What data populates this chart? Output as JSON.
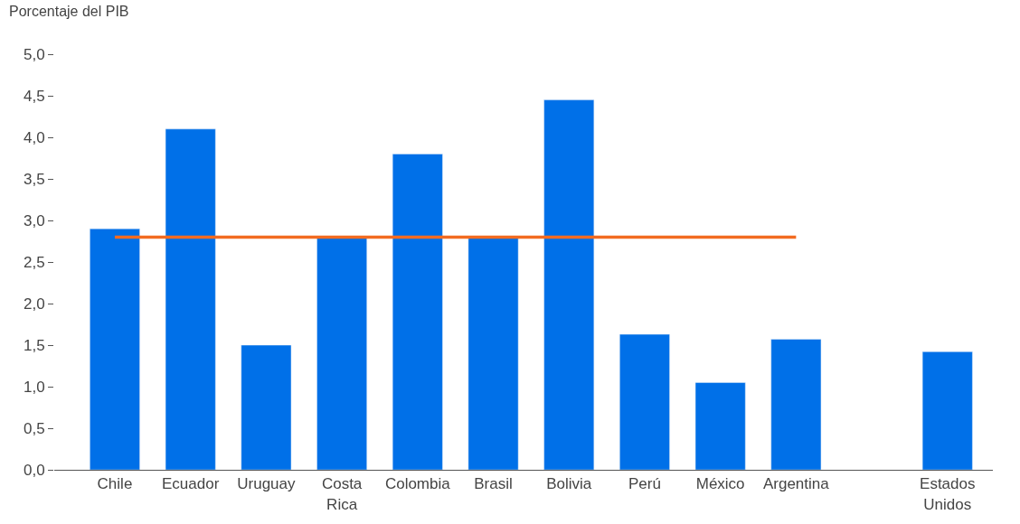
{
  "chart_data": {
    "type": "bar",
    "ylabel": "Porcentaje del PIB",
    "categories": [
      "Chile",
      "Ecuador",
      "Uruguay",
      "Costa Rica",
      "Colombia",
      "Brasil",
      "Bolivia",
      "Perú",
      "México",
      "Argentina",
      null,
      "Estados Unidos"
    ],
    "series": [
      {
        "color": "#0070e8",
        "values": [
          2.9,
          4.1,
          1.5,
          2.8,
          3.8,
          2.8,
          4.45,
          1.63,
          1.05,
          1.57,
          null,
          1.42
        ]
      },
      {
        "type": "line",
        "color": "#f26b21",
        "values": [
          2.8,
          2.8,
          2.8,
          2.8,
          2.8,
          2.8,
          2.8,
          2.8,
          2.8,
          2.8,
          null,
          null
        ]
      }
    ],
    "ylim": [
      0,
      5
    ],
    "yticks": [
      {
        "value": 0,
        "label": "0,0"
      },
      {
        "value": 0.5,
        "label": "0,5"
      },
      {
        "value": 1,
        "label": "1,0"
      },
      {
        "value": 1.5,
        "label": "1,5"
      },
      {
        "value": 2,
        "label": "2,0"
      },
      {
        "value": 2.5,
        "label": "2,5"
      },
      {
        "value": 3,
        "label": "3,0"
      },
      {
        "value": 3.5,
        "label": "3,5"
      },
      {
        "value": 4,
        "label": "4,0"
      },
      {
        "value": 4.5,
        "label": "4,5"
      },
      {
        "value": 5,
        "label": "5,0"
      }
    ]
  }
}
